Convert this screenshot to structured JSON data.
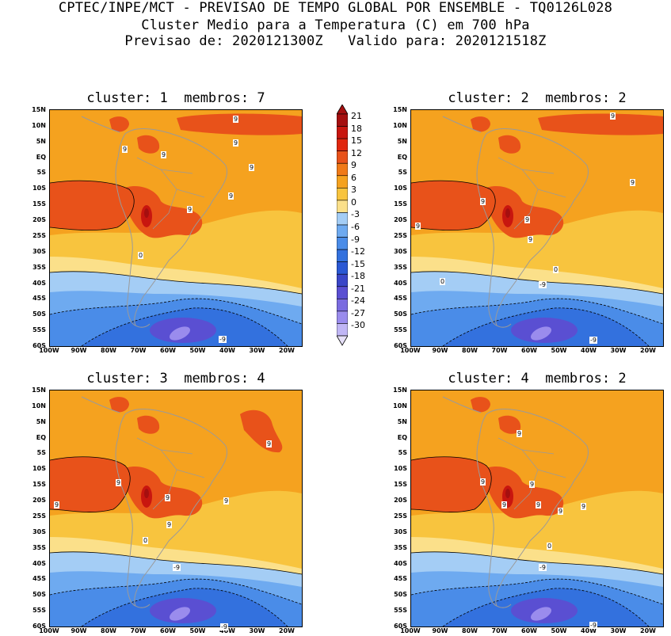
{
  "header": {
    "line1": "CPTEC/INPE/MCT - PREVISAO DE TEMPO GLOBAL POR ENSEMBLE - TQ0126L028",
    "line2": "Cluster Medio para a Temperatura (C) em 700 hPa",
    "line3": "Previsao de: 2020121300Z   Valido para: 2020121518Z"
  },
  "panels": [
    {
      "title": "cluster: 1  membros: 7"
    },
    {
      "title": "cluster: 2  membros: 2"
    },
    {
      "title": "cluster: 3  membros: 4"
    },
    {
      "title": "cluster: 4  membros: 2"
    }
  ],
  "lat_ticks": [
    "15N",
    "10N",
    "5N",
    "EQ",
    "5S",
    "10S",
    "15S",
    "20S",
    "25S",
    "30S",
    "35S",
    "40S",
    "45S",
    "50S",
    "55S",
    "60S"
  ],
  "lon_ticks": [
    "100W",
    "90W",
    "80W",
    "70W",
    "60W",
    "50W",
    "40W",
    "30W",
    "20W"
  ],
  "colorbar": {
    "levels": [
      "21",
      "18",
      "15",
      "12",
      "9",
      "6",
      "3",
      "0",
      "-3",
      "-6",
      "-9",
      "-12",
      "-15",
      "-18",
      "-21",
      "-24",
      "-27",
      "-30"
    ],
    "colors": [
      "#a50f0f",
      "#c8160f",
      "#e0260e",
      "#e8521a",
      "#f07a18",
      "#f5a21f",
      "#f8c43e",
      "#fbe08a",
      "#a4cdf5",
      "#6eaaf0",
      "#4a8ce8",
      "#3371de",
      "#2a58d4",
      "#3a46c8",
      "#5a4fd2",
      "#7a6be0",
      "#9a8ced",
      "#c0b6f5"
    ]
  },
  "contour_labels": {
    "p1": [
      "9",
      "9",
      "9",
      "9",
      "9",
      "9",
      "9",
      "0",
      "-9"
    ],
    "p2": [
      "9",
      "9",
      "9",
      "9",
      "9",
      "9",
      "0",
      "0",
      "-9",
      "-9"
    ],
    "p3": [
      "9",
      "9",
      "9",
      "9",
      "9",
      "9",
      "0",
      "-9",
      "-9"
    ],
    "p4": [
      "9",
      "9",
      "9",
      "9",
      "9",
      "9",
      "9",
      "0",
      "-9",
      "-9"
    ]
  },
  "colors": {
    "land_border": "#9a9a9a"
  }
}
